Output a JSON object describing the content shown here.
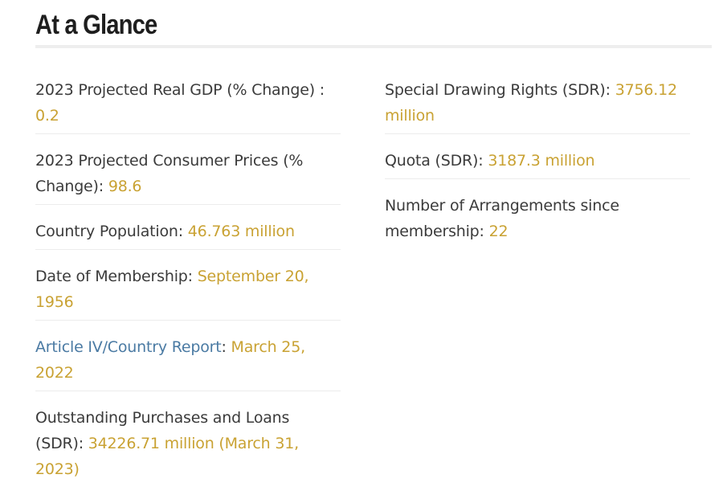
{
  "section": {
    "title": "At a Glance"
  },
  "left_items": [
    {
      "label": "2023 Projected Real GDP (% Change) : ",
      "value": "0.2"
    },
    {
      "label": "2023 Projected Consumer Prices (% Change): ",
      "value": "98.6"
    },
    {
      "label": "Country Population: ",
      "value": "46.763 million"
    },
    {
      "label": "Date of Membership: ",
      "value": "September 20, 1956"
    },
    {
      "label": "Article IV/Country Report",
      "label_suffix": ": ",
      "value": "March 25, 2022"
    },
    {
      "label": "Outstanding Purchases and Loans (SDR): ",
      "value": "34226.71 million (March 31, 2023)"
    }
  ],
  "right_items": [
    {
      "label": "Special Drawing Rights (SDR): ",
      "value": "3756.12 million"
    },
    {
      "label": "Quota (SDR): ",
      "value": "3187.3 million"
    },
    {
      "label": "Number of Arrangements since membership: ",
      "value": "22"
    }
  ],
  "colors": {
    "value": "#c9a233",
    "link": "#4a7aa3",
    "text": "#3b3b3b"
  }
}
